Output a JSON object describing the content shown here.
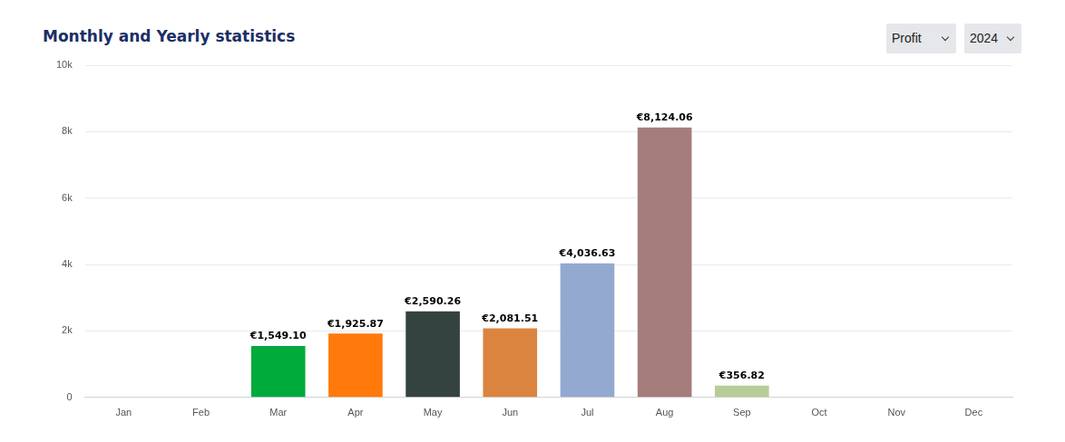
{
  "controls": {
    "metric": "Profit",
    "year": "2024"
  },
  "chart_data": {
    "type": "bar",
    "title": "Monthly and Yearly statistics",
    "categories": [
      "Jan",
      "Feb",
      "Mar",
      "Apr",
      "May",
      "Jun",
      "Jul",
      "Aug",
      "Sep",
      "Oct",
      "Nov",
      "Dec"
    ],
    "values": [
      null,
      null,
      1549.1,
      1925.87,
      2590.26,
      2081.51,
      4036.63,
      8124.06,
      356.82,
      null,
      null,
      null
    ],
    "value_labels": [
      null,
      null,
      "€1,549.10",
      "€1,925.87",
      "€2,590.26",
      "€2,081.51",
      "€4,036.63",
      "€8,124.06",
      "€356.82",
      null,
      null,
      null
    ],
    "colors": [
      null,
      null,
      "#00aa3b",
      "#ff7a0a",
      "#344240",
      "#db843f",
      "#94a9cf",
      "#a57d7b",
      "#b6cd98",
      null,
      null,
      null
    ],
    "ylim": [
      0,
      10000
    ],
    "yticks": [
      0,
      {
        "value": 2000,
        "label": "2k"
      },
      {
        "value": 4000,
        "label": "4k"
      },
      {
        "value": 6000,
        "label": "6k"
      },
      {
        "value": 8000,
        "label": "8k"
      },
      {
        "value": 10000,
        "label": "10k"
      }
    ],
    "grid": true,
    "data_labels": true
  }
}
